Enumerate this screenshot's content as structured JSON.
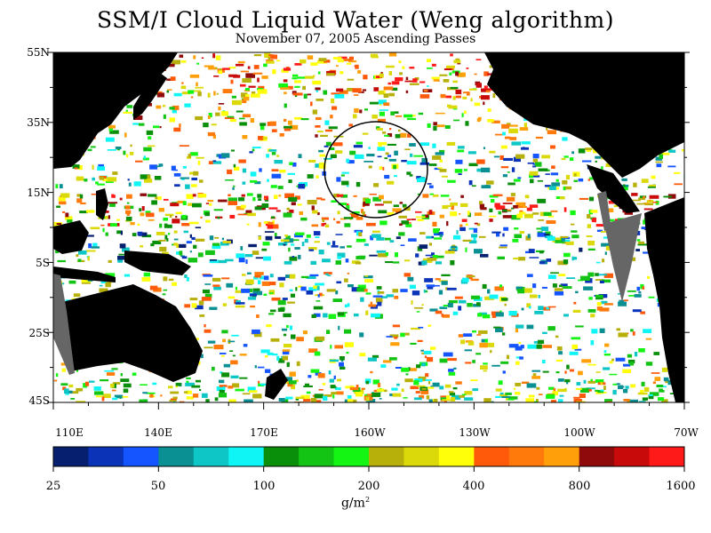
{
  "title": "SSM/I Cloud Liquid Water (Weng algorithm)",
  "subtitle": "November 07, 2005  Ascending Passes",
  "lat_labels": [
    "55N",
    "35N",
    "15N",
    "5S",
    "25S",
    "45S"
  ],
  "lon_labels": [
    "110E",
    "140E",
    "170E",
    "160W",
    "130W",
    "100W",
    "70W"
  ],
  "colorbar": {
    "colors": [
      "#061f6e",
      "#0a33b8",
      "#1555ff",
      "#0a8f93",
      "#0fc6c6",
      "#0ff5f5",
      "#0a8f0a",
      "#14c414",
      "#14f514",
      "#b8b00a",
      "#dcd90a",
      "#ffff0a",
      "#ff5a0a",
      "#ff7a0a",
      "#ffa00a",
      "#8f0a0a",
      "#c80a0a",
      "#ff1a1a"
    ],
    "tick_labels": [
      "25",
      "50",
      "100",
      "200",
      "400",
      "800",
      "1600"
    ],
    "unit_base": "g/m",
    "unit_exp": "2"
  },
  "land_color": "#000000",
  "nodata_color": "#666666"
}
